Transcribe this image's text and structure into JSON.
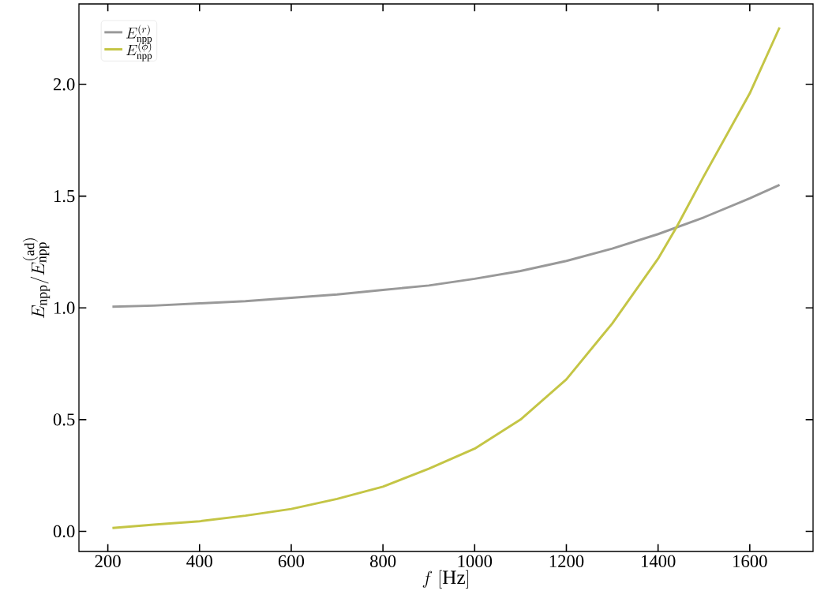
{
  "chart_data": {
    "type": "line",
    "xlabel": "f\\ [\\mathrm{Hz}]",
    "ylabel": "E_{\\mathrm{npp}}/E_{\\mathrm{npp}}^{(\\mathrm{ad})}",
    "xlim": [
      137,
      1738
    ],
    "ylim": [
      -0.09,
      2.36
    ],
    "xticks": [
      200,
      400,
      600,
      800,
      1000,
      1200,
      1400,
      1600
    ],
    "yticks": [
      {
        "value": 0,
        "label": "0.0"
      },
      {
        "value": 0.5,
        "label": "0.5"
      },
      {
        "value": 1,
        "label": "1.0"
      },
      {
        "value": 1.5,
        "label": "1.5"
      },
      {
        "value": 2,
        "label": "2.0"
      }
    ],
    "legend": "top left",
    "grid": false,
    "series": [
      {
        "name": "E_{\\mathrm{npp}}^{(r)}",
        "color": "#999999",
        "x": [
          210,
          300,
          400,
          500,
          600,
          700,
          800,
          900,
          1000,
          1100,
          1200,
          1300,
          1400,
          1500,
          1600,
          1665
        ],
        "values": [
          1.005,
          1.01,
          1.02,
          1.03,
          1.045,
          1.06,
          1.08,
          1.1,
          1.13,
          1.165,
          1.21,
          1.265,
          1.33,
          1.405,
          1.49,
          1.55
        ]
      },
      {
        "name": "E_{\\mathrm{npp}}^{(\\phi)}",
        "color": "#c4c545",
        "x": [
          210,
          300,
          400,
          500,
          600,
          700,
          800,
          900,
          1000,
          1100,
          1200,
          1300,
          1400,
          1440,
          1500,
          1600,
          1665
        ],
        "values": [
          0.015,
          0.03,
          0.045,
          0.07,
          0.1,
          0.145,
          0.2,
          0.28,
          0.37,
          0.5,
          0.68,
          0.93,
          1.22,
          1.36,
          1.59,
          1.96,
          2.255
        ]
      }
    ]
  }
}
